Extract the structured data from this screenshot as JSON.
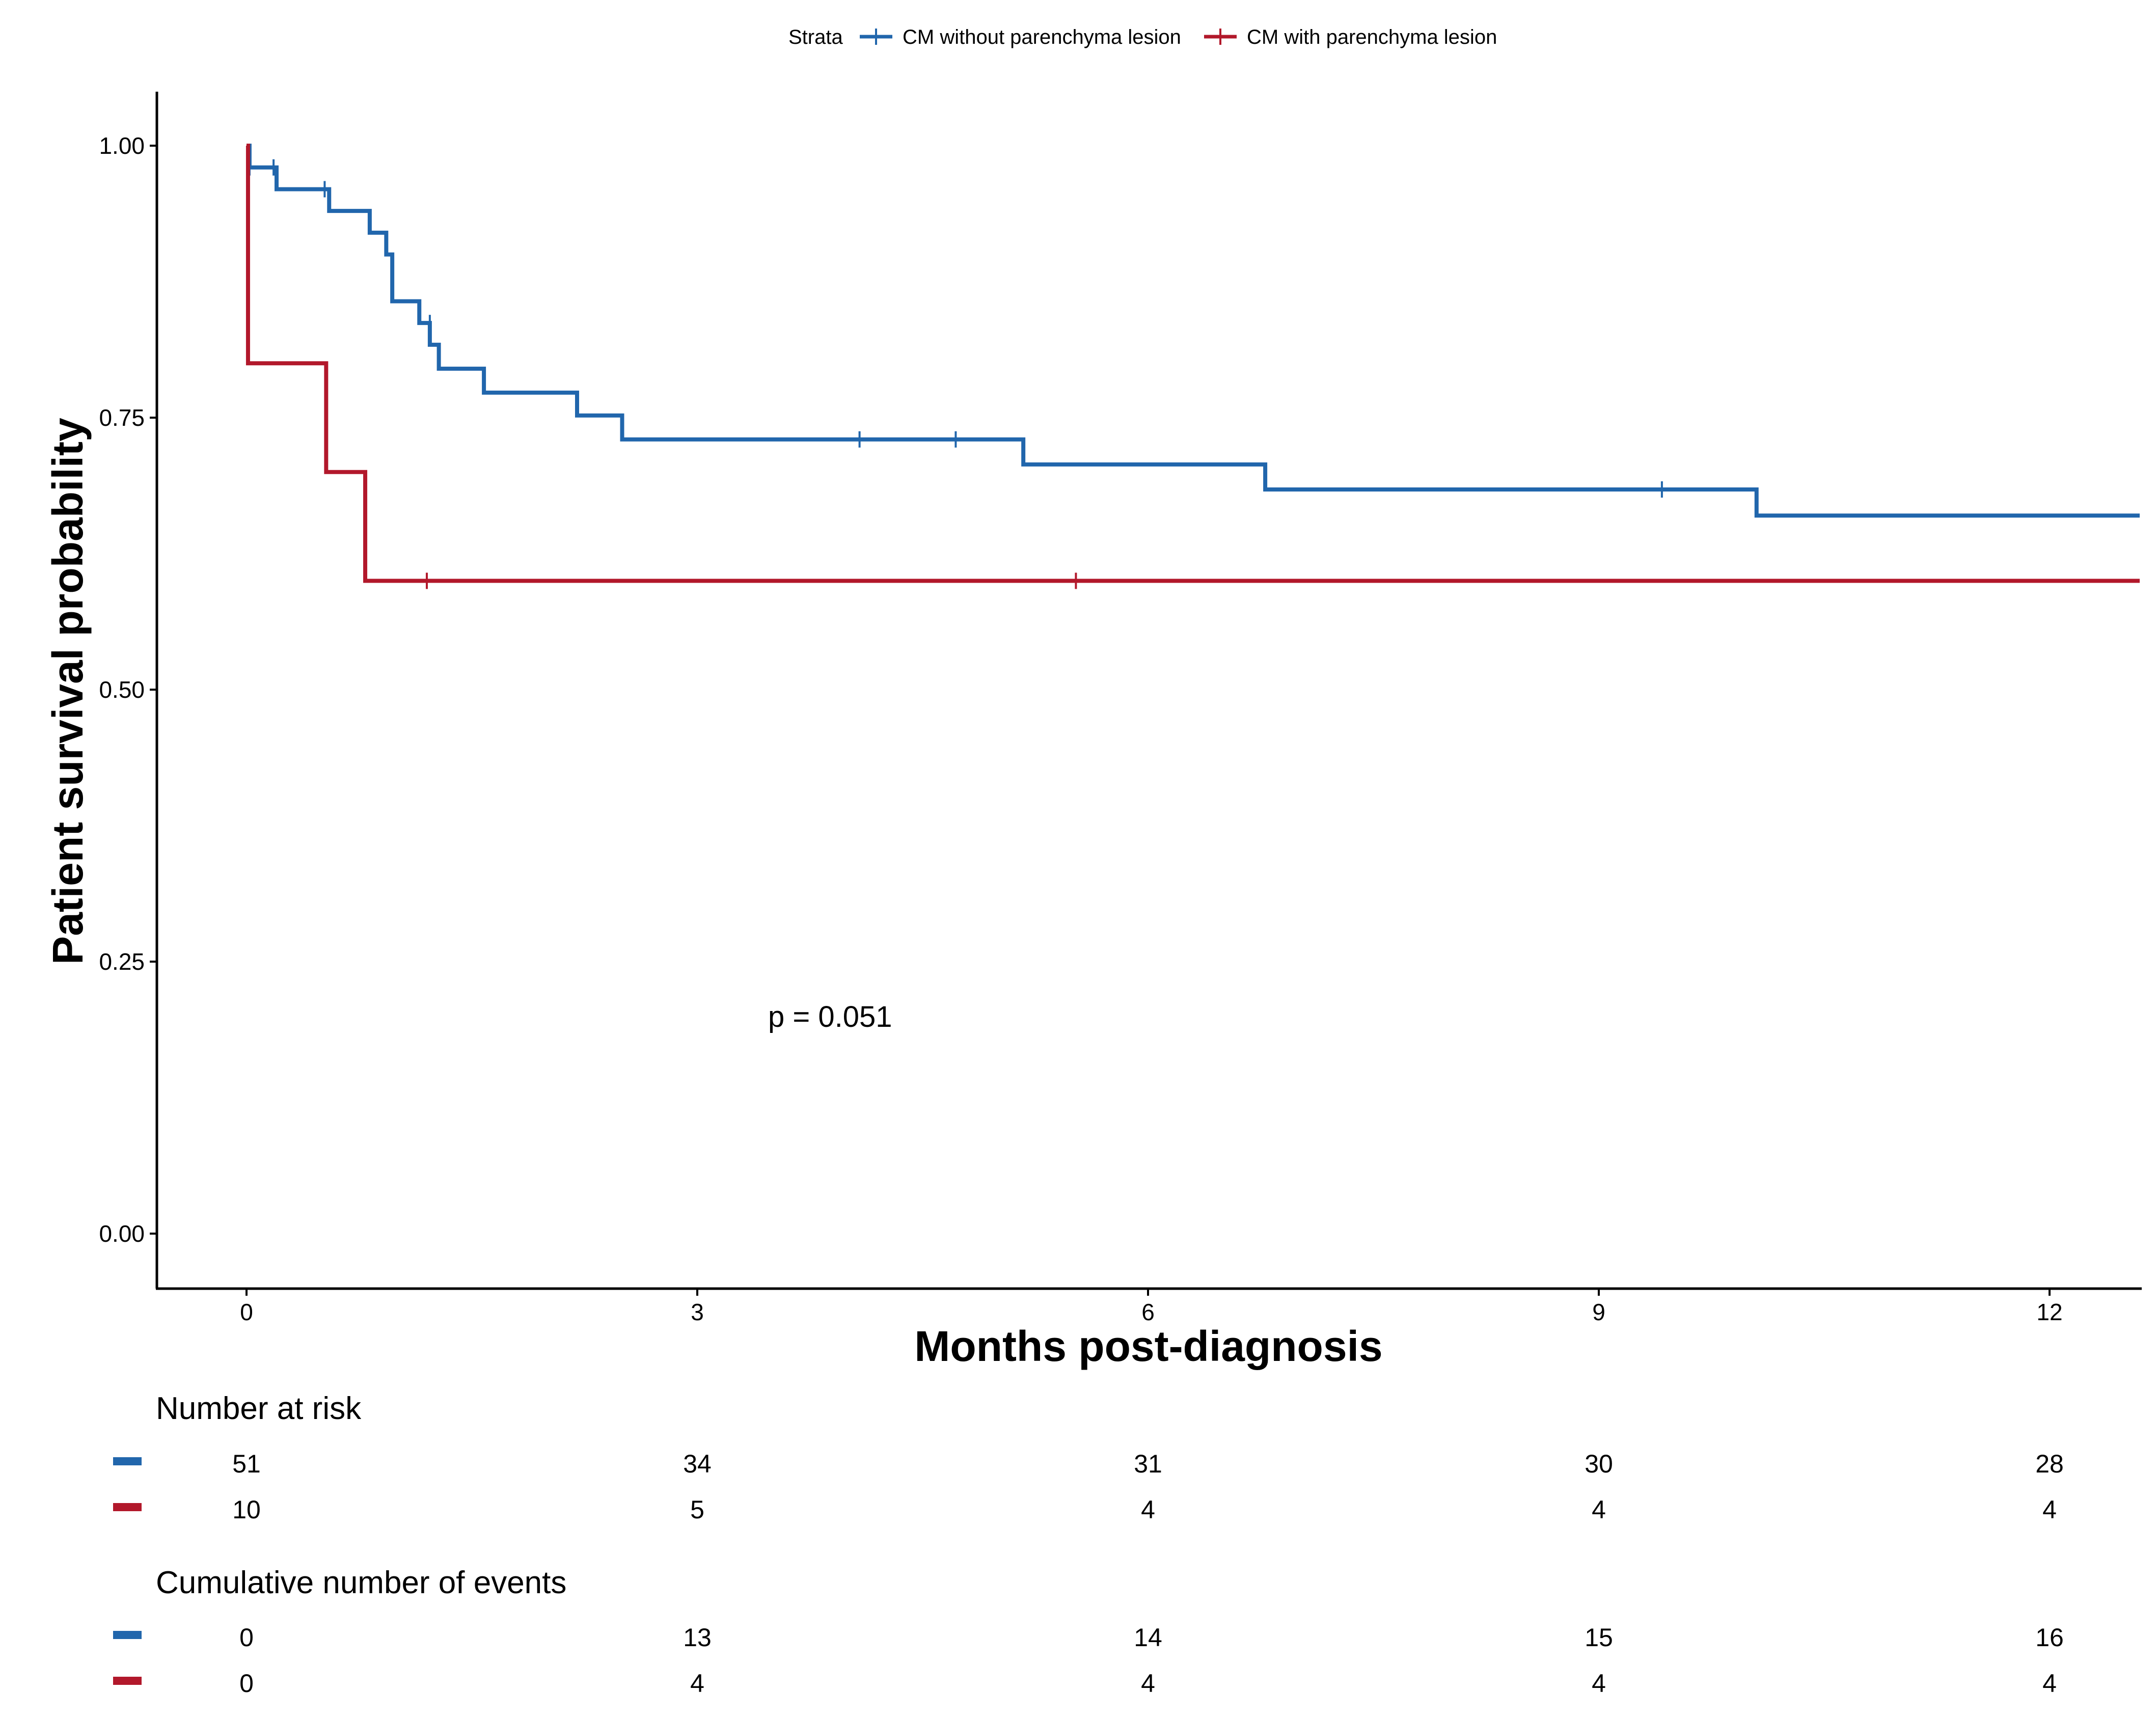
{
  "chart_data": {
    "type": "line",
    "subtype": "kaplan-meier",
    "xlabel": "Months post-diagnosis",
    "ylabel": "Patient survival probability",
    "xlim": [
      -0.6,
      12.6
    ],
    "ylim": [
      -0.05,
      1.05
    ],
    "x_ticks": [
      0,
      3,
      6,
      9,
      12
    ],
    "x_tick_labels": [
      "0",
      "3",
      "6",
      "9",
      "12"
    ],
    "y_ticks": [
      0,
      0.25,
      0.5,
      0.75,
      1.0
    ],
    "y_tick_labels": [
      "0.00",
      "0.25",
      "0.50",
      "0.75",
      "1.00"
    ],
    "grid": false,
    "legend": {
      "title": "Strata",
      "position": "top",
      "entries": [
        "CM without parenchyma lesion",
        "CM with parenchyma lesion"
      ]
    },
    "annotation": "p = 0.051",
    "series": [
      {
        "name": "CM without parenchyma lesion",
        "color": "#2166ac",
        "steps": [
          [
            0,
            1.0
          ],
          [
            0.02,
            0.98
          ],
          [
            0.2,
            0.96
          ],
          [
            0.55,
            0.94
          ],
          [
            0.82,
            0.92
          ],
          [
            0.93,
            0.9
          ],
          [
            0.97,
            0.857
          ],
          [
            1.15,
            0.837
          ],
          [
            1.22,
            0.817
          ],
          [
            1.28,
            0.795
          ],
          [
            1.58,
            0.773
          ],
          [
            2.2,
            0.752
          ],
          [
            2.5,
            0.73
          ],
          [
            5.17,
            0.707
          ],
          [
            6.78,
            0.684
          ],
          [
            10.05,
            0.66
          ],
          [
            12.6,
            0.66
          ]
        ],
        "censored": [
          [
            0.02,
            0.98
          ],
          [
            0.18,
            0.98
          ],
          [
            0.52,
            0.96
          ],
          [
            1.22,
            0.837
          ],
          [
            4.08,
            0.73
          ],
          [
            4.72,
            0.73
          ],
          [
            9.42,
            0.684
          ]
        ]
      },
      {
        "name": "CM with parenchyma lesion",
        "color": "#b2182b",
        "steps": [
          [
            0,
            1.0
          ],
          [
            0.01,
            0.8
          ],
          [
            0.53,
            0.7
          ],
          [
            0.79,
            0.6
          ],
          [
            12.6,
            0.6
          ]
        ],
        "censored": [
          [
            1.2,
            0.6
          ],
          [
            5.52,
            0.6
          ]
        ]
      }
    ]
  },
  "risk_table": {
    "title": "Number at risk",
    "times": [
      "0",
      "3",
      "6",
      "9",
      "12"
    ],
    "rows": [
      {
        "color": "#2166ac",
        "values": [
          "51",
          "34",
          "31",
          "30",
          "28"
        ]
      },
      {
        "color": "#b2182b",
        "values": [
          "10",
          "5",
          "4",
          "4",
          "4"
        ]
      }
    ]
  },
  "events_table": {
    "title": "Cumulative number of events",
    "times": [
      "0",
      "3",
      "6",
      "9",
      "12"
    ],
    "rows": [
      {
        "color": "#2166ac",
        "values": [
          "0",
          "13",
          "14",
          "15",
          "16"
        ]
      },
      {
        "color": "#b2182b",
        "values": [
          "0",
          "4",
          "4",
          "4",
          "4"
        ]
      }
    ]
  }
}
